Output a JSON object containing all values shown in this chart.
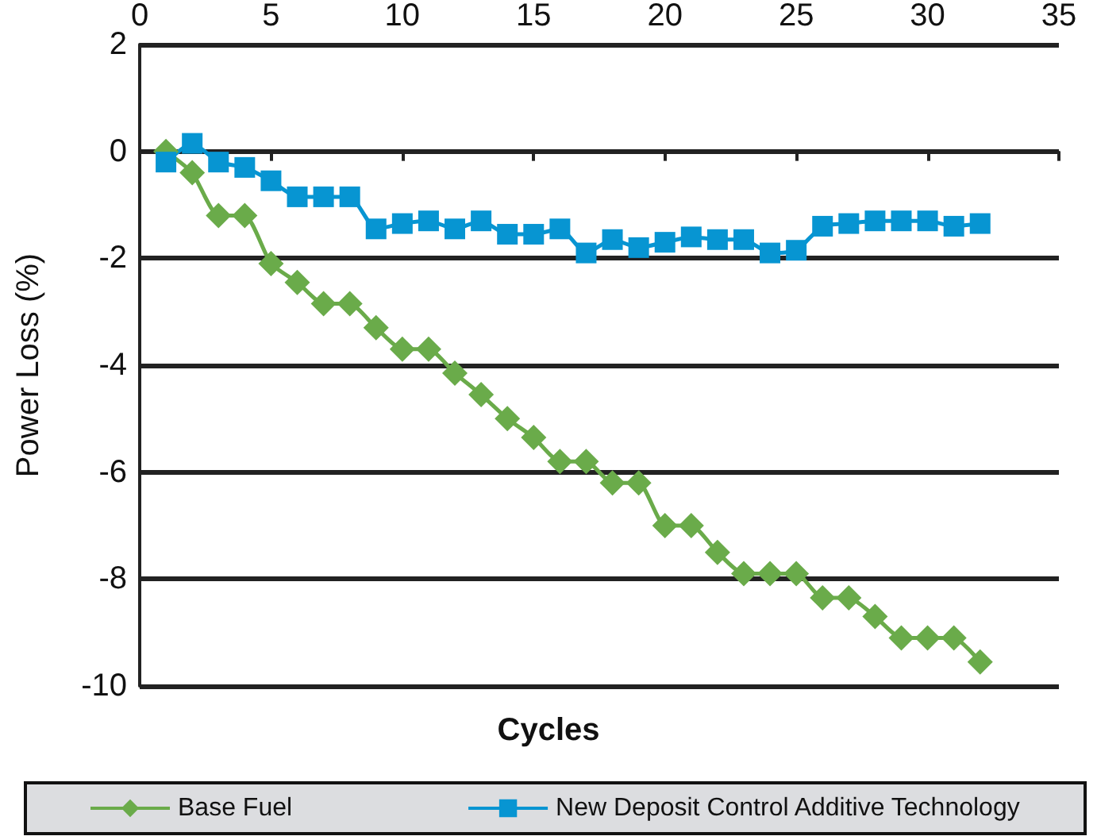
{
  "chart_data": {
    "type": "line",
    "xlabel": "Cycles",
    "ylabel": "Power Loss (%)",
    "x": [
      1,
      2,
      3,
      4,
      5,
      6,
      7,
      8,
      9,
      10,
      11,
      12,
      13,
      14,
      15,
      16,
      17,
      18,
      19,
      20,
      21,
      22,
      23,
      24,
      25,
      26,
      27,
      28,
      29,
      30,
      31,
      32
    ],
    "series": [
      {
        "name": "Base Fuel",
        "color": "#6aab4a",
        "marker": "diamond",
        "values": [
          0,
          -0.4,
          -1.2,
          -1.2,
          -2.1,
          -2.45,
          -2.85,
          -2.85,
          -3.3,
          -3.7,
          -3.7,
          -4.15,
          -4.55,
          -5.0,
          -5.35,
          -5.8,
          -5.8,
          -6.2,
          -6.2,
          -7.0,
          -7.0,
          -7.5,
          -7.9,
          -7.9,
          -7.9,
          -8.35,
          -8.35,
          -8.7,
          -9.1,
          -9.1,
          -9.1,
          -9.55
        ]
      },
      {
        "name": "New Deposit Control Additive Technology",
        "color": "#0795d2",
        "marker": "square",
        "values": [
          -0.2,
          0.15,
          -0.2,
          -0.3,
          -0.55,
          -0.85,
          -0.85,
          -0.85,
          -1.45,
          -1.35,
          -1.3,
          -1.45,
          -1.3,
          -1.55,
          -1.55,
          -1.45,
          -1.9,
          -1.65,
          -1.8,
          -1.7,
          -1.6,
          -1.65,
          -1.65,
          -1.9,
          -1.85,
          -1.4,
          -1.35,
          -1.3,
          -1.3,
          -1.3,
          -1.4,
          -1.35
        ]
      }
    ],
    "xlim": [
      0,
      35
    ],
    "xticks": [
      0,
      5,
      10,
      15,
      20,
      25,
      30,
      35
    ],
    "ylim": [
      -10,
      2
    ],
    "yticks": [
      -10,
      -8,
      -6,
      -4,
      -2,
      0,
      2
    ],
    "grid": "y",
    "legend": "bottom",
    "line_style": "solid"
  }
}
